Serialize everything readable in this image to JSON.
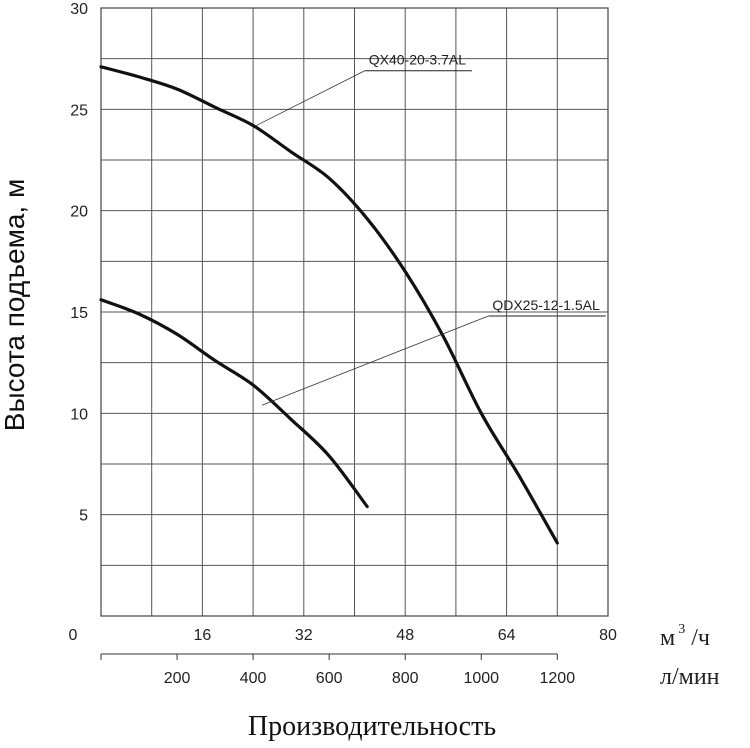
{
  "chart_data": {
    "type": "line",
    "xlabel": "Производительность",
    "ylabel": "Высота подъема, м",
    "x_unit_primary": "м³/ч",
    "x_unit_primary_base": "м",
    "x_unit_primary_sup": "3",
    "x_unit_primary_suffix": "/ч",
    "x_unit_secondary": "л/мин",
    "xlim": [
      0,
      80
    ],
    "ylim": [
      0,
      30
    ],
    "x_ticks": [
      0,
      16,
      32,
      48,
      64,
      80
    ],
    "x_tick_labels": [
      "0",
      "16",
      "32",
      "48",
      "64",
      "80"
    ],
    "x2_ticks": [
      200,
      400,
      600,
      800,
      1000,
      1200
    ],
    "x2_tick_labels": [
      "200",
      "400",
      "600",
      "800",
      "1000",
      "1200"
    ],
    "y_ticks": [
      5,
      10,
      15,
      20,
      25,
      30
    ],
    "y_tick_labels": [
      "5",
      "10",
      "15",
      "20",
      "25",
      "30"
    ],
    "grid": true,
    "series": [
      {
        "name": "QX40-20-3.7AL",
        "color": "#111111",
        "x": [
          0,
          6,
          12,
          18,
          24,
          30,
          36,
          42,
          48,
          54,
          60,
          66,
          72
        ],
        "y": [
          27.1,
          26.6,
          26.0,
          25.1,
          24.2,
          22.9,
          21.6,
          19.6,
          17.0,
          13.8,
          10.0,
          6.9,
          3.6
        ],
        "label_at": [
          57.6,
          27.2
        ],
        "leader_to": [
          24.5,
          24.2
        ]
      },
      {
        "name": "QDX25-12-1.5AL",
        "color": "#111111",
        "x": [
          0,
          6,
          12,
          18,
          24,
          30,
          36,
          42
        ],
        "y": [
          15.6,
          14.9,
          13.9,
          12.6,
          11.4,
          9.7,
          7.9,
          5.4
        ],
        "label_at": [
          78.7,
          15.1
        ],
        "leader_to": [
          25.4,
          10.4
        ]
      }
    ]
  }
}
